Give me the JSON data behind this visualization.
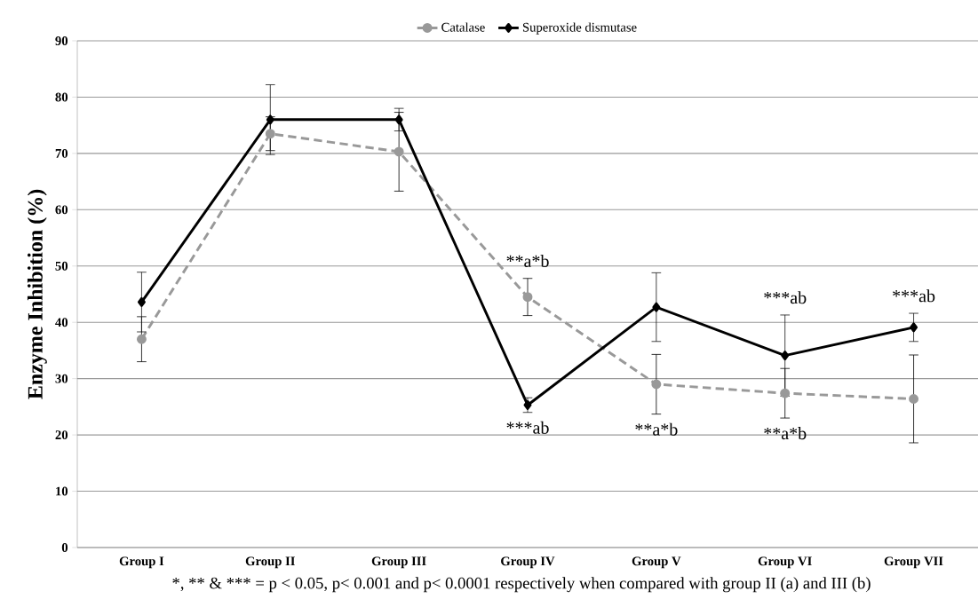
{
  "chart_data": {
    "type": "line",
    "ylabel": "Enzyme Inhibition (%)",
    "categories": [
      "Group I",
      "Group II",
      "Group III",
      "Group IV",
      "Group V",
      "Group VI",
      "Group VII"
    ],
    "series": [
      {
        "name": "Catalase",
        "color": "#999999",
        "marker": "circle",
        "line_style": "dashed",
        "values": [
          37,
          73.5,
          70.3,
          44.5,
          29,
          27.4,
          26.4
        ],
        "errors": [
          4,
          3,
          7,
          3.3,
          5.3,
          4.4,
          7.8
        ]
      },
      {
        "name": "Superoxide dismutase",
        "color": "#000000",
        "marker": "diamond",
        "line_style": "solid",
        "values": [
          43.6,
          76,
          76,
          25.3,
          42.7,
          34.1,
          39.1
        ],
        "errors": [
          5.3,
          6.2,
          2,
          1.3,
          6.1,
          7.2,
          2.5
        ]
      }
    ],
    "ylim": [
      0,
      90
    ],
    "yticks": [
      0,
      10,
      20,
      30,
      40,
      50,
      60,
      70,
      80,
      90
    ],
    "grid": "y",
    "legend": "top",
    "annotations": [
      {
        "text": "**a*b",
        "x": "Group IV",
        "y": 44.5
      },
      {
        "text": "***ab",
        "x": "Group IV",
        "y": 25.3
      },
      {
        "text": "**a*b",
        "x": "Group V",
        "y": 29
      },
      {
        "text": "***ab",
        "x": "Group VI",
        "y": 34.1
      },
      {
        "text": "**a*b",
        "x": "Group VI",
        "y": 27.4
      },
      {
        "text": "***ab",
        "x": "Group VII",
        "y": 39.1
      },
      "*, ** & *** = p < 0.05, p< 0.001 and p< 0.0001 respectively when compared with group II (a) and III (b)"
    ]
  }
}
